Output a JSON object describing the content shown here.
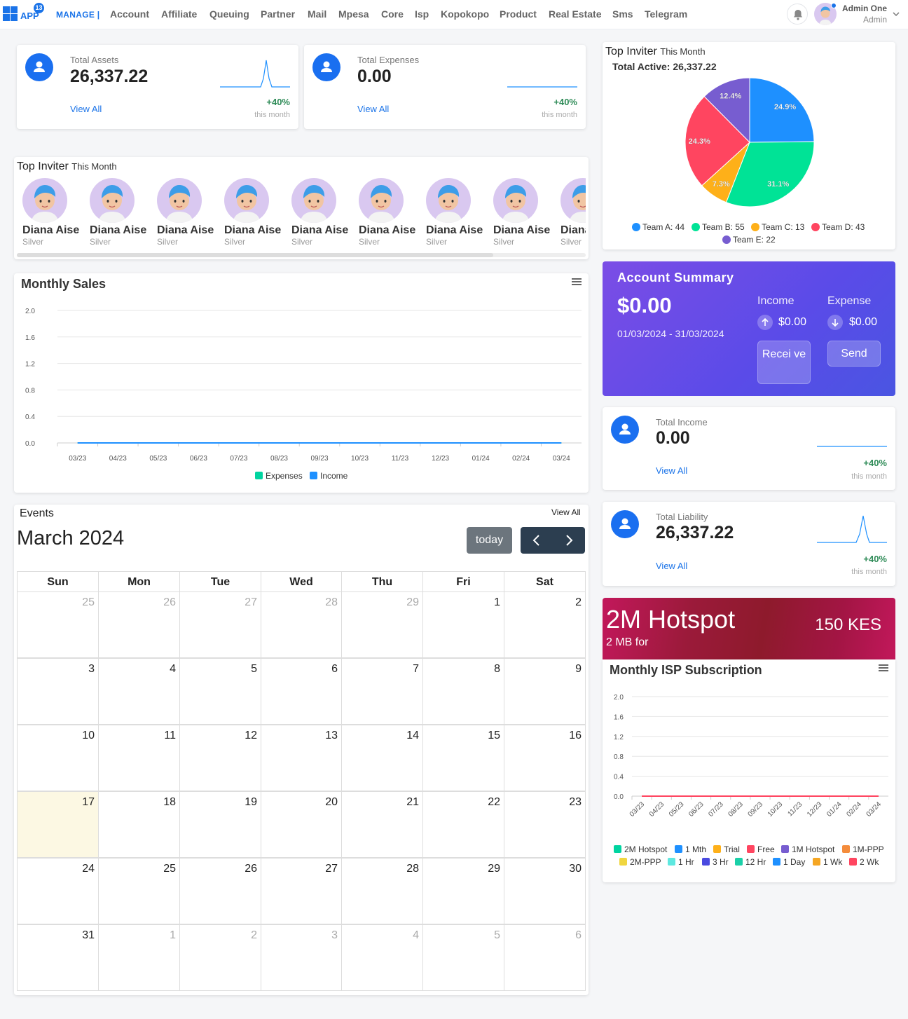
{
  "topbar": {
    "badge": "13",
    "app": "APP",
    "manage": "MANAGE |",
    "nav": [
      "Account",
      "Affiliate",
      "Queuing",
      "Partner",
      "Mail",
      "Mpesa",
      "Core",
      "Isp",
      "Kopokopo",
      "Product",
      "Real Estate",
      "Sms",
      "Telegram"
    ],
    "user_name": "Admin One",
    "user_role": "Admin"
  },
  "stats": {
    "assets": {
      "label": "Total Assets",
      "value": "26,337.22",
      "view": "View All",
      "pct": "+40%",
      "period": "this month"
    },
    "expenses": {
      "label": "Total Expenses",
      "value": "0.00",
      "view": "View All",
      "pct": "+40%",
      "period": "this month"
    },
    "income": {
      "label": "Total Income",
      "value": "0.00",
      "view": "View All",
      "pct": "+40%",
      "period": "this month"
    },
    "liability": {
      "label": "Total Liability",
      "value": "26,337.22",
      "view": "View All",
      "pct": "+40%",
      "period": "this month"
    }
  },
  "inviter": {
    "title": "Top Inviter",
    "sub": "This Month",
    "people": [
      {
        "name": "Diana Aise",
        "rank": "Silver"
      },
      {
        "name": "Diana Aise",
        "rank": "Silver"
      },
      {
        "name": "Diana Aise",
        "rank": "Silver"
      },
      {
        "name": "Diana Aise",
        "rank": "Silver"
      },
      {
        "name": "Diana Aise",
        "rank": "Silver"
      },
      {
        "name": "Diana Aise",
        "rank": "Silver"
      },
      {
        "name": "Diana Aise",
        "rank": "Silver"
      },
      {
        "name": "Diana Aise",
        "rank": "Silver"
      },
      {
        "name": "Diana Aise",
        "rank": "Silver"
      }
    ]
  },
  "pie_card": {
    "title": "Top Inviter",
    "sub": "This Month",
    "total": "Total Active: 26,337.22"
  },
  "account_summary": {
    "title": "Account Summary",
    "balance": "$0.00",
    "range": "01/03/2024 - 31/03/2024",
    "income_label": "Income",
    "income_value": "$0.00",
    "expense_label": "Expense",
    "expense_value": "$0.00",
    "receive": "Recei ve",
    "send": "Send"
  },
  "hotspot": {
    "title": "2M Hotspot",
    "sub": "2 MB for",
    "price": "150 KES"
  },
  "events": {
    "title": "Events",
    "view_all": "View All",
    "month": "March 2024",
    "today_btn": "today",
    "prev": "‹",
    "next": "›",
    "days": [
      "Sun",
      "Mon",
      "Tue",
      "Wed",
      "Thu",
      "Fri",
      "Sat"
    ],
    "weeks": [
      [
        "25",
        "26",
        "27",
        "28",
        "29",
        "1",
        "2"
      ],
      [
        "3",
        "4",
        "5",
        "6",
        "7",
        "8",
        "9"
      ],
      [
        "10",
        "11",
        "12",
        "13",
        "14",
        "15",
        "16"
      ],
      [
        "17",
        "18",
        "19",
        "20",
        "21",
        "22",
        "23"
      ],
      [
        "24",
        "25",
        "26",
        "27",
        "28",
        "29",
        "30"
      ],
      [
        "31",
        "1",
        "2",
        "3",
        "4",
        "5",
        "6"
      ]
    ],
    "today": "17"
  },
  "colors": {
    "primary": "#1a73e8",
    "teamA": "#1e90ff",
    "teamB": "#00e396",
    "teamC": "#feb019",
    "teamD": "#ff4560",
    "teamE": "#775dd0"
  },
  "chart_data": [
    {
      "type": "pie",
      "title": "",
      "labels": [
        "Team A",
        "Team B",
        "Team C",
        "Team D",
        "Team E"
      ],
      "values": [
        44,
        55,
        13,
        43,
        22
      ],
      "percent_labels": [
        "24.9%",
        "31.1%",
        "7.3%",
        "24.3%",
        "12.4%"
      ],
      "legend": [
        "Team A: 44",
        "Team B: 55",
        "Team C: 13",
        "Team D: 43",
        "Team E: 22"
      ],
      "legend_position": "bottom"
    },
    {
      "type": "line",
      "title": "Monthly Sales",
      "categories": [
        "03/23",
        "04/23",
        "05/23",
        "06/23",
        "07/23",
        "08/23",
        "09/23",
        "10/23",
        "11/23",
        "12/23",
        "01/24",
        "02/24",
        "03/24"
      ],
      "y_ticks": [
        "2.0",
        "1.6",
        "1.2",
        "0.8",
        "0.4",
        "0.0"
      ],
      "ylim": [
        0,
        2
      ],
      "series": [
        {
          "name": "Expenses",
          "values": [
            0,
            0,
            0,
            0,
            0,
            0,
            0,
            0,
            0,
            0,
            0,
            0,
            0
          ]
        },
        {
          "name": "Income",
          "values": [
            0,
            0,
            0,
            0,
            0,
            0,
            0,
            0,
            0,
            0,
            0,
            0,
            0
          ]
        }
      ],
      "legend_position": "bottom",
      "grid": true
    },
    {
      "type": "line",
      "title": "Monthly ISP Subscription",
      "categories": [
        "03/23",
        "04/23",
        "05/23",
        "06/23",
        "07/23",
        "08/23",
        "09/23",
        "10/23",
        "11/23",
        "12/23",
        "01/24",
        "02/24",
        "03/24"
      ],
      "y_ticks": [
        "2.0",
        "1.6",
        "1.2",
        "0.8",
        "0.4",
        "0.0"
      ],
      "ylim": [
        0,
        2
      ],
      "series": [
        {
          "name": "2M Hotspot",
          "values": [
            0,
            0,
            0,
            0,
            0,
            0,
            0,
            0,
            0,
            0,
            0,
            0,
            0
          ]
        },
        {
          "name": "1 Mth",
          "values": [
            0,
            0,
            0,
            0,
            0,
            0,
            0,
            0,
            0,
            0,
            0,
            0,
            0
          ]
        },
        {
          "name": "Trial",
          "values": [
            0,
            0,
            0,
            0,
            0,
            0,
            0,
            0,
            0,
            0,
            0,
            0,
            0
          ]
        },
        {
          "name": "Free",
          "values": [
            0,
            0,
            0,
            0,
            0,
            0,
            0,
            0,
            0,
            0,
            0,
            0,
            0
          ]
        },
        {
          "name": "1M Hotspot",
          "values": [
            0,
            0,
            0,
            0,
            0,
            0,
            0,
            0,
            0,
            0,
            0,
            0,
            0
          ]
        },
        {
          "name": "1M-PPP",
          "values": [
            0,
            0,
            0,
            0,
            0,
            0,
            0,
            0,
            0,
            0,
            0,
            0,
            0
          ]
        },
        {
          "name": "2M-PPP",
          "values": [
            0,
            0,
            0,
            0,
            0,
            0,
            0,
            0,
            0,
            0,
            0,
            0,
            0
          ]
        },
        {
          "name": "1 Hr",
          "values": [
            0,
            0,
            0,
            0,
            0,
            0,
            0,
            0,
            0,
            0,
            0,
            0,
            0
          ]
        },
        {
          "name": "3 Hr",
          "values": [
            0,
            0,
            0,
            0,
            0,
            0,
            0,
            0,
            0,
            0,
            0,
            0,
            0
          ]
        },
        {
          "name": "12 Hr",
          "values": [
            0,
            0,
            0,
            0,
            0,
            0,
            0,
            0,
            0,
            0,
            0,
            0,
            0
          ]
        },
        {
          "name": "1 Day",
          "values": [
            0,
            0,
            0,
            0,
            0,
            0,
            0,
            0,
            0,
            0,
            0,
            0,
            0
          ]
        },
        {
          "name": "1 Wk",
          "values": [
            0,
            0,
            0,
            0,
            0,
            0,
            0,
            0,
            0,
            0,
            0,
            0,
            0
          ]
        },
        {
          "name": "2 Wk",
          "values": [
            0,
            0,
            0,
            0,
            0,
            0,
            0,
            0,
            0,
            0,
            0,
            0,
            0
          ]
        }
      ],
      "series_colors": [
        "#00d4a0",
        "#1e90ff",
        "#feb019",
        "#ff4560",
        "#775dd0",
        "#f48c3c",
        "#f0d640",
        "#5ee8e0",
        "#4a4ae0",
        "#1ad0a8",
        "#1e90ff",
        "#f5a623",
        "#ff4560"
      ],
      "legend_position": "bottom",
      "grid": true
    }
  ]
}
